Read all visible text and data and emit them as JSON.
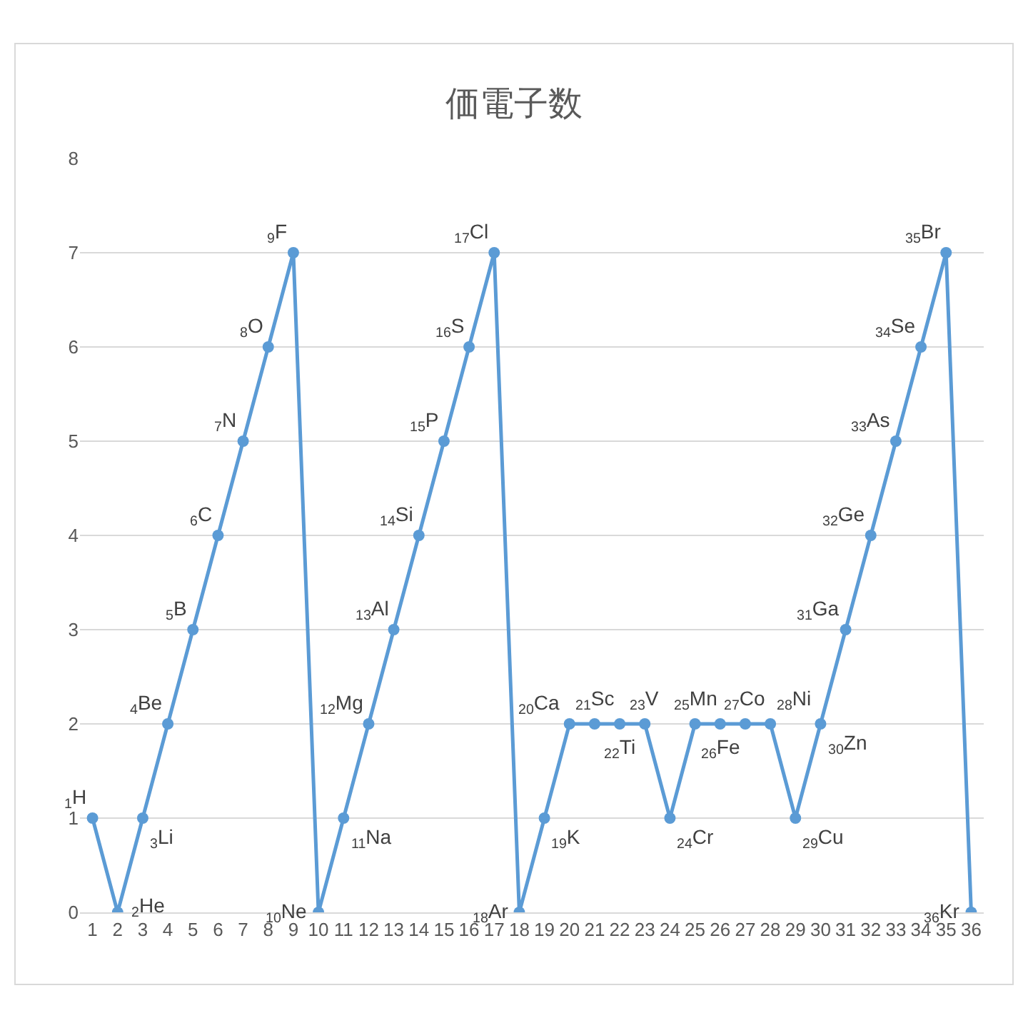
{
  "chart_data": {
    "type": "line",
    "title": "価電子数",
    "x": [
      1,
      2,
      3,
      4,
      5,
      6,
      7,
      8,
      9,
      10,
      11,
      12,
      13,
      14,
      15,
      16,
      17,
      18,
      19,
      20,
      21,
      22,
      23,
      24,
      25,
      26,
      27,
      28,
      29,
      30,
      31,
      32,
      33,
      34,
      35,
      36
    ],
    "series": [
      {
        "color": "#5b9bd5",
        "values": [
          1,
          0,
          1,
          2,
          3,
          4,
          5,
          6,
          7,
          0,
          1,
          2,
          3,
          4,
          5,
          6,
          7,
          0,
          1,
          2,
          2,
          2,
          2,
          1,
          2,
          2,
          2,
          2,
          1,
          2,
          3,
          4,
          5,
          6,
          7,
          0
        ]
      }
    ],
    "xlim": [
      0.5,
      36.5
    ],
    "xticks": [
      1,
      2,
      3,
      4,
      5,
      6,
      7,
      8,
      9,
      10,
      11,
      12,
      13,
      14,
      15,
      16,
      17,
      18,
      19,
      20,
      21,
      22,
      23,
      24,
      25,
      26,
      27,
      28,
      29,
      30,
      31,
      32,
      33,
      34,
      35,
      36
    ],
    "ylim": [
      0,
      8
    ],
    "yticks": [
      0,
      1,
      2,
      3,
      4,
      5,
      6,
      7,
      8
    ],
    "grid": "y",
    "marker": "circle",
    "line_style": "solid",
    "annotations": [
      {
        "text": "$_{1}$H",
        "x": 1,
        "y": 1
      },
      {
        "text": "$_{2}$He",
        "x": 2,
        "y": 0
      },
      {
        "text": "$_{3}$Li",
        "x": 3,
        "y": 1
      },
      {
        "text": "$_{4}$Be",
        "x": 4,
        "y": 2
      },
      {
        "text": "$_{5}$B",
        "x": 5,
        "y": 3
      },
      {
        "text": "$_{6}$C",
        "x": 6,
        "y": 4
      },
      {
        "text": "$_{7}$N",
        "x": 7,
        "y": 5
      },
      {
        "text": "$_{8}$O",
        "x": 8,
        "y": 6
      },
      {
        "text": "$_{9}$F",
        "x": 9,
        "y": 7
      },
      {
        "text": "$_{10}$Ne",
        "x": 10,
        "y": 0
      },
      {
        "text": "$_{11}$Na",
        "x": 11,
        "y": 1
      },
      {
        "text": "$_{12}$Mg",
        "x": 12,
        "y": 2
      },
      {
        "text": "$_{13}$Al",
        "x": 13,
        "y": 3
      },
      {
        "text": "$_{14}$Si",
        "x": 14,
        "y": 4
      },
      {
        "text": "$_{15}$P",
        "x": 15,
        "y": 5
      },
      {
        "text": "$_{16}$S",
        "x": 16,
        "y": 6
      },
      {
        "text": "$_{17}$Cl",
        "x": 17,
        "y": 7
      },
      {
        "text": "$_{18}$Ar",
        "x": 18,
        "y": 0
      },
      {
        "text": "$_{19}$K",
        "x": 19,
        "y": 1
      },
      {
        "text": "$_{20}$Ca",
        "x": 20,
        "y": 2
      },
      {
        "text": "$_{21}$Sc",
        "x": 21,
        "y": 2
      },
      {
        "text": "$_{22}$Ti",
        "x": 22,
        "y": 2
      },
      {
        "text": "$_{23}$V",
        "x": 23,
        "y": 2
      },
      {
        "text": "$_{24}$Cr",
        "x": 24,
        "y": 1
      },
      {
        "text": "$_{25}$Mn",
        "x": 25,
        "y": 2
      },
      {
        "text": "$_{26}$Fe",
        "x": 26,
        "y": 2
      },
      {
        "text": "$_{27}$Co",
        "x": 27,
        "y": 2
      },
      {
        "text": "$_{28}$Ni",
        "x": 28,
        "y": 2
      },
      {
        "text": "$_{29}$Cu",
        "x": 29,
        "y": 1
      },
      {
        "text": "$_{30}$Zn",
        "x": 30,
        "y": 2
      },
      {
        "text": "$_{31}$Ga",
        "x": 31,
        "y": 3
      },
      {
        "text": "$_{32}$Ge",
        "x": 32,
        "y": 4
      },
      {
        "text": "$_{33}$As",
        "x": 33,
        "y": 5
      },
      {
        "text": "$_{34}$Se",
        "x": 34,
        "y": 6
      },
      {
        "text": "$_{35}$Br",
        "x": 35,
        "y": 7
      },
      {
        "text": "$_{36}$Kr",
        "x": 36,
        "y": 0
      }
    ]
  }
}
